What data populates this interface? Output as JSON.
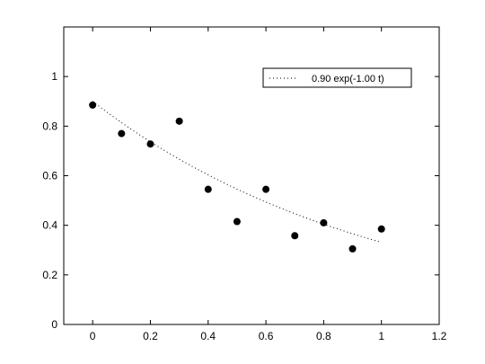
{
  "chart_data": {
    "type": "scatter",
    "xlim": [
      -0.1,
      1.2
    ],
    "ylim": [
      0,
      1.2
    ],
    "xticks": [
      0,
      0.2,
      0.4,
      0.6,
      0.8,
      1,
      1.2
    ],
    "xtick_labels": [
      "0",
      "0.2",
      "0.4",
      "0.6",
      "0.8",
      "1",
      "1.2"
    ],
    "yticks": [
      0,
      0.2,
      0.4,
      0.6,
      0.8,
      1
    ],
    "ytick_labels": [
      "0",
      "0.2",
      "0.4",
      "0.6",
      "0.8",
      "1"
    ],
    "grid": false,
    "legend_position": "top-right",
    "points": {
      "x": [
        0,
        0.1,
        0.2,
        0.3,
        0.4,
        0.5,
        0.6,
        0.7,
        0.8,
        0.9,
        1.0
      ],
      "y": [
        0.885,
        0.77,
        0.728,
        0.82,
        0.545,
        0.415,
        0.545,
        0.358,
        0.41,
        0.305,
        0.385
      ],
      "color": "#000000"
    },
    "fit_line": {
      "label": "0.90 exp(-1.00 t)",
      "style": "dotted",
      "color": "#000000",
      "amplitude": 0.9,
      "rate": 1.0,
      "x_range": [
        0,
        1
      ]
    }
  }
}
